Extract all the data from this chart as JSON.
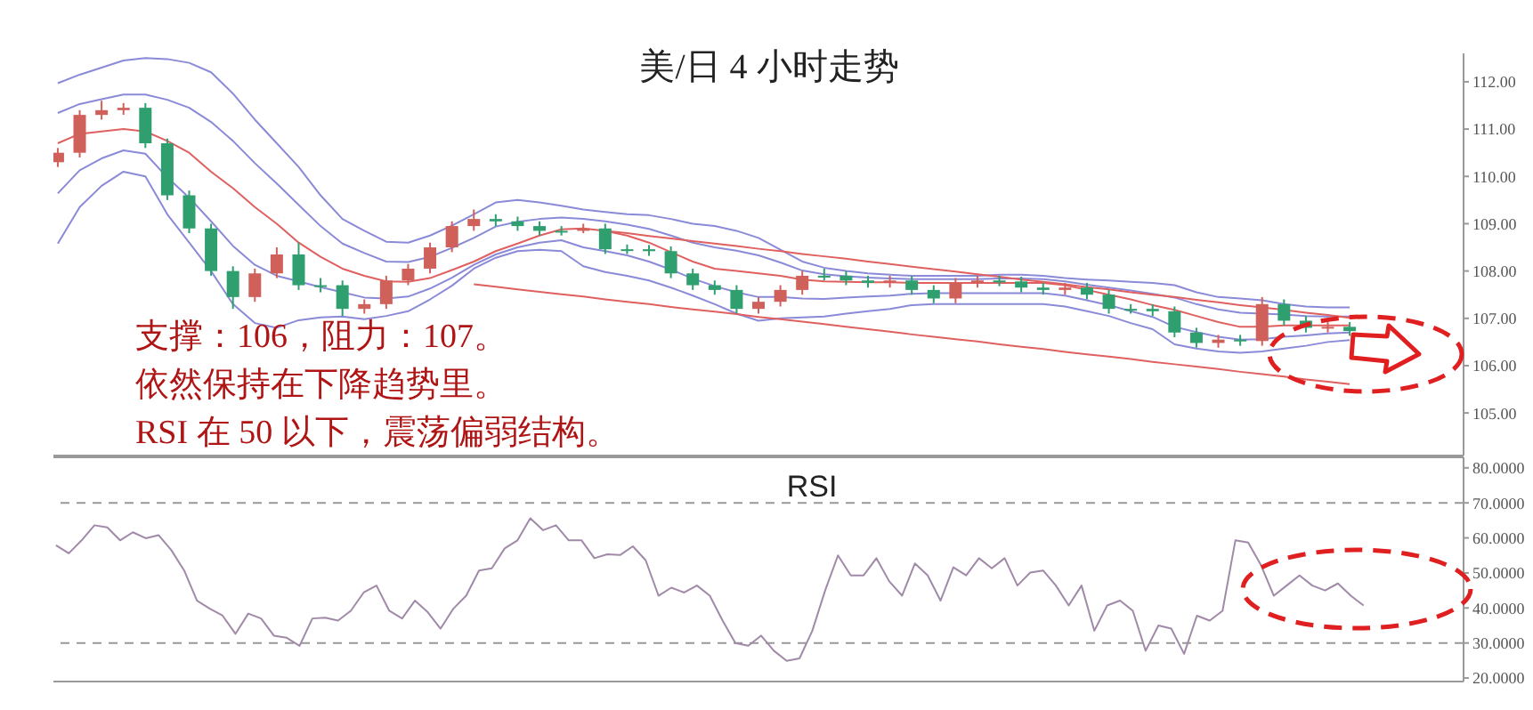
{
  "chart_data": [
    {
      "type": "candlestick",
      "title": "美/日 4 小时走势",
      "annotations": [
        "支撑：106，阻力：107。",
        "依然保持在下降趋势里。",
        "RSI 在 50 以下，震荡偏弱结构。"
      ],
      "categories": [
        null,
        null,
        null,
        null,
        null,
        null,
        null,
        null,
        null,
        null,
        null,
        null,
        null,
        null,
        null,
        null,
        null,
        null,
        null,
        null,
        null,
        null,
        null,
        null,
        null,
        null,
        null,
        null,
        null,
        null,
        null,
        null,
        null,
        null,
        null,
        null,
        null,
        null,
        null,
        null,
        null,
        null,
        null,
        null,
        null,
        null,
        null,
        null,
        null,
        null,
        null,
        null,
        null,
        null,
        null,
        null,
        null,
        null,
        null,
        null
      ],
      "ohlc": [
        [
          110.3,
          110.6,
          110.2,
          110.5
        ],
        [
          110.5,
          111.4,
          110.4,
          111.3
        ],
        [
          111.3,
          111.6,
          111.2,
          111.4
        ],
        [
          111.4,
          111.55,
          111.3,
          111.45
        ],
        [
          111.45,
          111.55,
          110.6,
          110.7
        ],
        [
          110.7,
          110.8,
          109.5,
          109.6
        ],
        [
          109.6,
          109.7,
          108.8,
          108.9
        ],
        [
          108.9,
          109.0,
          107.9,
          108.0
        ],
        [
          108.0,
          108.1,
          107.2,
          107.45
        ],
        [
          107.45,
          108.05,
          107.35,
          107.95
        ],
        [
          107.95,
          108.5,
          107.85,
          108.35
        ],
        [
          108.35,
          108.6,
          107.6,
          107.7
        ],
        [
          107.7,
          107.85,
          107.55,
          107.7
        ],
        [
          107.7,
          107.8,
          107.05,
          107.2
        ],
        [
          107.2,
          107.4,
          107.1,
          107.3
        ],
        [
          107.3,
          107.9,
          107.2,
          107.8
        ],
        [
          107.8,
          108.15,
          107.7,
          108.05
        ],
        [
          108.05,
          108.6,
          107.95,
          108.5
        ],
        [
          108.5,
          109.05,
          108.4,
          108.95
        ],
        [
          108.95,
          109.3,
          108.85,
          109.1
        ],
        [
          109.1,
          109.2,
          108.95,
          109.05
        ],
        [
          109.05,
          109.15,
          108.85,
          108.95
        ],
        [
          108.95,
          109.05,
          108.75,
          108.85
        ],
        [
          108.85,
          108.95,
          108.75,
          108.85
        ],
        [
          108.85,
          109.0,
          108.8,
          108.9
        ],
        [
          108.9,
          109.0,
          108.36,
          108.46
        ],
        [
          108.46,
          108.56,
          108.36,
          108.46
        ],
        [
          108.46,
          108.55,
          108.32,
          108.42
        ],
        [
          108.42,
          108.52,
          107.85,
          107.95
        ],
        [
          107.95,
          108.05,
          107.6,
          107.7
        ],
        [
          107.7,
          107.8,
          107.5,
          107.6
        ],
        [
          107.6,
          107.7,
          107.1,
          107.2
        ],
        [
          107.2,
          107.45,
          107.1,
          107.35
        ],
        [
          107.35,
          107.7,
          107.25,
          107.6
        ],
        [
          107.6,
          108.0,
          107.5,
          107.9
        ],
        [
          107.9,
          108.05,
          107.8,
          107.9
        ],
        [
          107.9,
          108.0,
          107.7,
          107.8
        ],
        [
          107.8,
          107.9,
          107.65,
          107.75
        ],
        [
          107.75,
          107.9,
          107.65,
          107.8
        ],
        [
          107.8,
          107.9,
          107.5,
          107.6
        ],
        [
          107.6,
          107.7,
          107.32,
          107.42
        ],
        [
          107.42,
          107.85,
          107.32,
          107.75
        ],
        [
          107.75,
          107.9,
          107.65,
          107.8
        ],
        [
          107.8,
          107.9,
          107.68,
          107.78
        ],
        [
          107.78,
          107.88,
          107.55,
          107.65
        ],
        [
          107.65,
          107.75,
          107.5,
          107.6
        ],
        [
          107.6,
          107.75,
          107.5,
          107.65
        ],
        [
          107.65,
          107.75,
          107.4,
          107.5
        ],
        [
          107.5,
          107.6,
          107.1,
          107.2
        ],
        [
          107.2,
          107.3,
          107.1,
          107.2
        ],
        [
          107.2,
          107.3,
          107.05,
          107.15
        ],
        [
          107.15,
          107.25,
          106.6,
          106.7
        ],
        [
          106.7,
          106.8,
          106.38,
          106.48
        ],
        [
          106.48,
          106.65,
          106.38,
          106.55
        ],
        [
          106.55,
          106.65,
          106.42,
          106.52
        ],
        [
          106.52,
          107.45,
          106.42,
          107.3
        ],
        [
          107.3,
          107.4,
          106.85,
          106.95
        ],
        [
          106.95,
          107.05,
          106.7,
          106.8
        ],
        [
          106.8,
          106.92,
          106.7,
          106.82
        ],
        [
          106.82,
          106.92,
          106.63,
          106.73
        ]
      ],
      "colors": [
        "#d0605a",
        "#d0605a",
        "#d0605a",
        "#d0605a",
        "#2f9f6f",
        "#2f9f6f",
        "#2f9f6f",
        "#2f9f6f",
        "#2f9f6f",
        "#d0605a",
        "#d0605a",
        "#2f9f6f",
        "#2f9f6f",
        "#2f9f6f",
        "#d0605a",
        "#d0605a",
        "#d0605a",
        "#d0605a",
        "#d0605a",
        "#d0605a",
        "#2f9f6f",
        "#2f9f6f",
        "#2f9f6f",
        "#2f9f6f",
        "#d0605a",
        "#2f9f6f",
        "#2f9f6f",
        "#2f9f6f",
        "#2f9f6f",
        "#2f9f6f",
        "#2f9f6f",
        "#2f9f6f",
        "#d0605a",
        "#d0605a",
        "#d0605a",
        "#2f9f6f",
        "#2f9f6f",
        "#2f9f6f",
        "#d0605a",
        "#2f9f6f",
        "#2f9f6f",
        "#d0605a",
        "#d0605a",
        "#2f9f6f",
        "#2f9f6f",
        "#2f9f6f",
        "#d0605a",
        "#2f9f6f",
        "#2f9f6f",
        "#2f9f6f",
        "#2f9f6f",
        "#2f9f6f",
        "#2f9f6f",
        "#d0605a",
        "#2f9f6f",
        "#d0605a",
        "#2f9f6f",
        "#2f9f6f",
        "#d0605a",
        "#2f9f6f"
      ],
      "series": [
        {
          "type": "line",
          "color": "#8a8ad8",
          "values": [
            111.97,
            112.15,
            112.3,
            112.45,
            112.5,
            112.48,
            112.4,
            112.2,
            111.75,
            111.2,
            110.7,
            110.2,
            109.6,
            109.1,
            108.85,
            108.62,
            108.6,
            108.75,
            108.96,
            109.2,
            109.45,
            109.5,
            109.45,
            109.38,
            109.3,
            109.25,
            109.2,
            109.18,
            109.1,
            109.0,
            108.95,
            108.85,
            108.7,
            108.45,
            108.2,
            108.07,
            108.0,
            107.95,
            107.92,
            107.9,
            107.9,
            107.9,
            107.9,
            107.92,
            107.92,
            107.9,
            107.85,
            107.82,
            107.8,
            107.77,
            107.75,
            107.7,
            107.55,
            107.45,
            107.42,
            107.38,
            107.3,
            107.25,
            107.23,
            107.23
          ]
        },
        {
          "type": "line",
          "color": "#8a8ad8",
          "values": [
            111.34,
            111.53,
            111.63,
            111.73,
            111.73,
            111.62,
            111.45,
            111.15,
            110.75,
            110.28,
            109.85,
            109.4,
            108.95,
            108.58,
            108.38,
            108.2,
            108.19,
            108.3,
            108.49,
            108.7,
            108.94,
            109.04,
            109.1,
            109.13,
            109.1,
            109.05,
            108.98,
            108.89,
            108.75,
            108.6,
            108.5,
            108.43,
            108.33,
            108.18,
            108.01,
            107.93,
            107.89,
            107.86,
            107.84,
            107.83,
            107.83,
            107.83,
            107.83,
            107.84,
            107.84,
            107.83,
            107.78,
            107.71,
            107.65,
            107.59,
            107.52,
            107.44,
            107.3,
            107.19,
            107.12,
            107.1,
            107.08,
            107.05,
            107.04,
            107.04
          ]
        },
        {
          "type": "line",
          "color": "#e06060",
          "values": [
            110.7,
            110.9,
            110.95,
            111.0,
            110.95,
            110.75,
            110.5,
            110.1,
            109.75,
            109.35,
            109.0,
            108.6,
            108.3,
            108.05,
            107.9,
            107.78,
            107.77,
            107.85,
            108.02,
            108.2,
            108.42,
            108.58,
            108.75,
            108.88,
            108.9,
            108.85,
            108.75,
            108.6,
            108.4,
            108.2,
            108.05,
            108.0,
            107.95,
            107.9,
            107.82,
            107.78,
            107.77,
            107.76,
            107.76,
            107.75,
            107.75,
            107.75,
            107.75,
            107.75,
            107.75,
            107.75,
            107.7,
            107.6,
            107.5,
            107.4,
            107.28,
            107.18,
            107.05,
            106.92,
            106.82,
            106.82,
            106.85,
            106.85,
            106.85,
            106.85
          ]
        },
        {
          "type": "line",
          "color": "#8a8ad8",
          "values": [
            109.64,
            110.13,
            110.38,
            110.55,
            110.48,
            109.98,
            109.55,
            109.05,
            108.53,
            108.13,
            107.9,
            107.78,
            107.66,
            107.55,
            107.44,
            107.42,
            107.46,
            107.63,
            107.86,
            108.13,
            108.35,
            108.5,
            108.6,
            108.65,
            108.5,
            108.42,
            108.33,
            108.2,
            108.03,
            107.84,
            107.68,
            107.55,
            107.45,
            107.45,
            107.42,
            107.41,
            107.44,
            107.46,
            107.48,
            107.52,
            107.53,
            107.53,
            107.53,
            107.53,
            107.53,
            107.53,
            107.48,
            107.38,
            107.28,
            107.15,
            107.03,
            106.82,
            106.71,
            106.61,
            106.55,
            106.56,
            106.61,
            106.64,
            106.68,
            106.7
          ]
        },
        {
          "type": "line",
          "color": "#8a8ad8",
          "values": [
            108.58,
            109.35,
            109.8,
            110.1,
            110.0,
            109.2,
            108.6,
            108.0,
            107.3,
            106.9,
            106.8,
            106.96,
            107.02,
            107.04,
            106.98,
            107.05,
            107.15,
            107.4,
            107.69,
            108.05,
            108.28,
            108.42,
            108.45,
            108.42,
            108.1,
            107.98,
            107.9,
            107.8,
            107.65,
            107.48,
            107.3,
            107.1,
            106.95,
            107.0,
            107.02,
            107.04,
            107.1,
            107.15,
            107.2,
            107.28,
            107.3,
            107.3,
            107.3,
            107.3,
            107.3,
            107.3,
            107.25,
            107.15,
            107.05,
            106.9,
            106.77,
            106.45,
            106.36,
            106.3,
            106.27,
            106.3,
            106.36,
            106.42,
            106.5,
            106.54
          ]
        },
        {
          "type": "line",
          "color": "#e06060",
          "values": [
            null,
            null,
            null,
            null,
            null,
            null,
            null,
            null,
            null,
            null,
            null,
            null,
            null,
            null,
            null,
            null,
            null,
            null,
            null,
            null,
            null,
            null,
            null,
            null,
            null,
            108.85,
            108.8,
            108.74,
            108.69,
            108.63,
            108.58,
            108.53,
            108.47,
            108.42,
            108.36,
            108.31,
            108.26,
            108.2,
            108.15,
            108.09,
            108.04,
            107.99,
            107.93,
            107.88,
            107.82,
            107.77,
            107.72,
            107.66,
            107.61,
            107.55,
            107.5,
            107.45,
            107.39,
            107.34,
            107.28,
            107.23,
            107.18,
            107.12,
            107.07,
            107.01
          ]
        },
        {
          "type": "line",
          "color": "#e06060",
          "values": [
            null,
            null,
            null,
            null,
            null,
            null,
            null,
            null,
            null,
            null,
            null,
            null,
            null,
            null,
            null,
            null,
            null,
            null,
            null,
            107.72,
            107.67,
            107.61,
            107.56,
            107.51,
            107.46,
            107.4,
            107.35,
            107.3,
            107.24,
            107.19,
            107.14,
            107.09,
            107.03,
            106.98,
            106.93,
            106.88,
            106.82,
            106.77,
            106.72,
            106.66,
            106.61,
            106.56,
            106.51,
            106.45,
            106.4,
            106.35,
            106.29,
            106.24,
            106.19,
            106.14,
            106.08,
            106.03,
            105.98,
            105.93,
            105.87,
            105.82,
            105.77,
            105.71,
            105.66,
            105.61
          ]
        }
      ],
      "ylim": [
        104.1,
        112.6
      ],
      "yticks": [
        {
          "value": 105,
          "label": "105.00"
        },
        {
          "value": 106,
          "label": "106.00"
        },
        {
          "value": 107,
          "label": "107.00"
        },
        {
          "value": 108,
          "label": "108.00"
        },
        {
          "value": 109,
          "label": "109.00"
        },
        {
          "value": 110,
          "label": "110.00"
        },
        {
          "value": 111,
          "label": "111.00"
        },
        {
          "value": 112,
          "label": "112.00"
        }
      ],
      "tick_labels": "y"
    },
    {
      "type": "line",
      "title": "RSI",
      "categories": [
        null,
        null,
        null,
        null,
        null,
        null,
        null,
        null,
        null,
        null,
        null,
        null,
        null,
        null,
        null,
        null,
        null,
        null,
        null,
        null,
        null,
        null,
        null,
        null,
        null,
        null,
        null,
        null,
        null,
        null,
        null,
        null,
        null,
        null,
        null,
        null,
        null,
        null,
        null,
        null,
        null,
        null,
        null,
        null,
        null,
        null,
        null,
        null,
        null,
        null,
        null,
        null,
        null,
        null,
        null,
        null,
        null,
        null,
        null,
        null,
        null,
        null,
        null,
        null,
        null,
        null,
        null,
        null,
        null,
        null,
        null,
        null,
        null,
        null,
        null,
        null,
        null,
        null,
        null,
        null,
        null,
        null,
        null,
        null,
        null,
        null,
        null,
        null,
        null,
        null,
        null,
        null,
        null,
        null,
        null,
        null,
        null,
        null,
        null,
        null,
        null,
        null,
        null
      ],
      "series": [
        {
          "type": "line",
          "color": "#a08aa8",
          "values": [
            57.9,
            55.6,
            59.3,
            63.6,
            63.0,
            59.3,
            61.6,
            59.9,
            60.8,
            56.5,
            50.7,
            42.1,
            39.8,
            37.8,
            32.6,
            38.4,
            37.0,
            32.1,
            31.5,
            29.2,
            37.0,
            37.2,
            36.4,
            39.2,
            44.4,
            46.4,
            39.2,
            37.0,
            42.1,
            38.8,
            34.1,
            39.8,
            43.5,
            50.7,
            51.3,
            57.0,
            59.3,
            65.6,
            62.2,
            63.6,
            59.3,
            59.3,
            54.2,
            55.3,
            55.1,
            57.6,
            53.6,
            43.5,
            45.8,
            44.4,
            46.4,
            43.5,
            36.4,
            30.0,
            29.2,
            32.1,
            27.8,
            24.9,
            25.6,
            33.5,
            45.0,
            55.0,
            49.3,
            49.3,
            54.2,
            47.6,
            43.5,
            52.7,
            49.3,
            42.1,
            51.6,
            49.3,
            54.2,
            51.3,
            54.2,
            46.4,
            50.1,
            50.7,
            46.4,
            40.7,
            46.4,
            33.5,
            40.7,
            42.1,
            39.2,
            27.8,
            35.0,
            34.1,
            26.9,
            37.8,
            36.4,
            39.2,
            59.3,
            58.7,
            52.2,
            43.5,
            46.4,
            49.3,
            46.4,
            45.0,
            47.0,
            43.5,
            40.7
          ]
        }
      ],
      "ref_lines": [
        {
          "axis": "y",
          "value": 30,
          "color": "#999999",
          "line_style": "dashed"
        },
        {
          "axis": "y",
          "value": 70,
          "color": "#999999",
          "line_style": "dashed"
        }
      ],
      "ylim": [
        19,
        83
      ],
      "yticks": [
        {
          "value": 20,
          "label": "20.0000"
        },
        {
          "value": 30,
          "label": "30.0000"
        },
        {
          "value": 40,
          "label": "40.0000"
        },
        {
          "value": 50,
          "label": "50.0000"
        },
        {
          "value": 60,
          "label": "60.0000"
        },
        {
          "value": 70,
          "label": "70.0000"
        },
        {
          "value": 80,
          "label": "80.0000"
        }
      ],
      "tick_labels": "y"
    }
  ]
}
